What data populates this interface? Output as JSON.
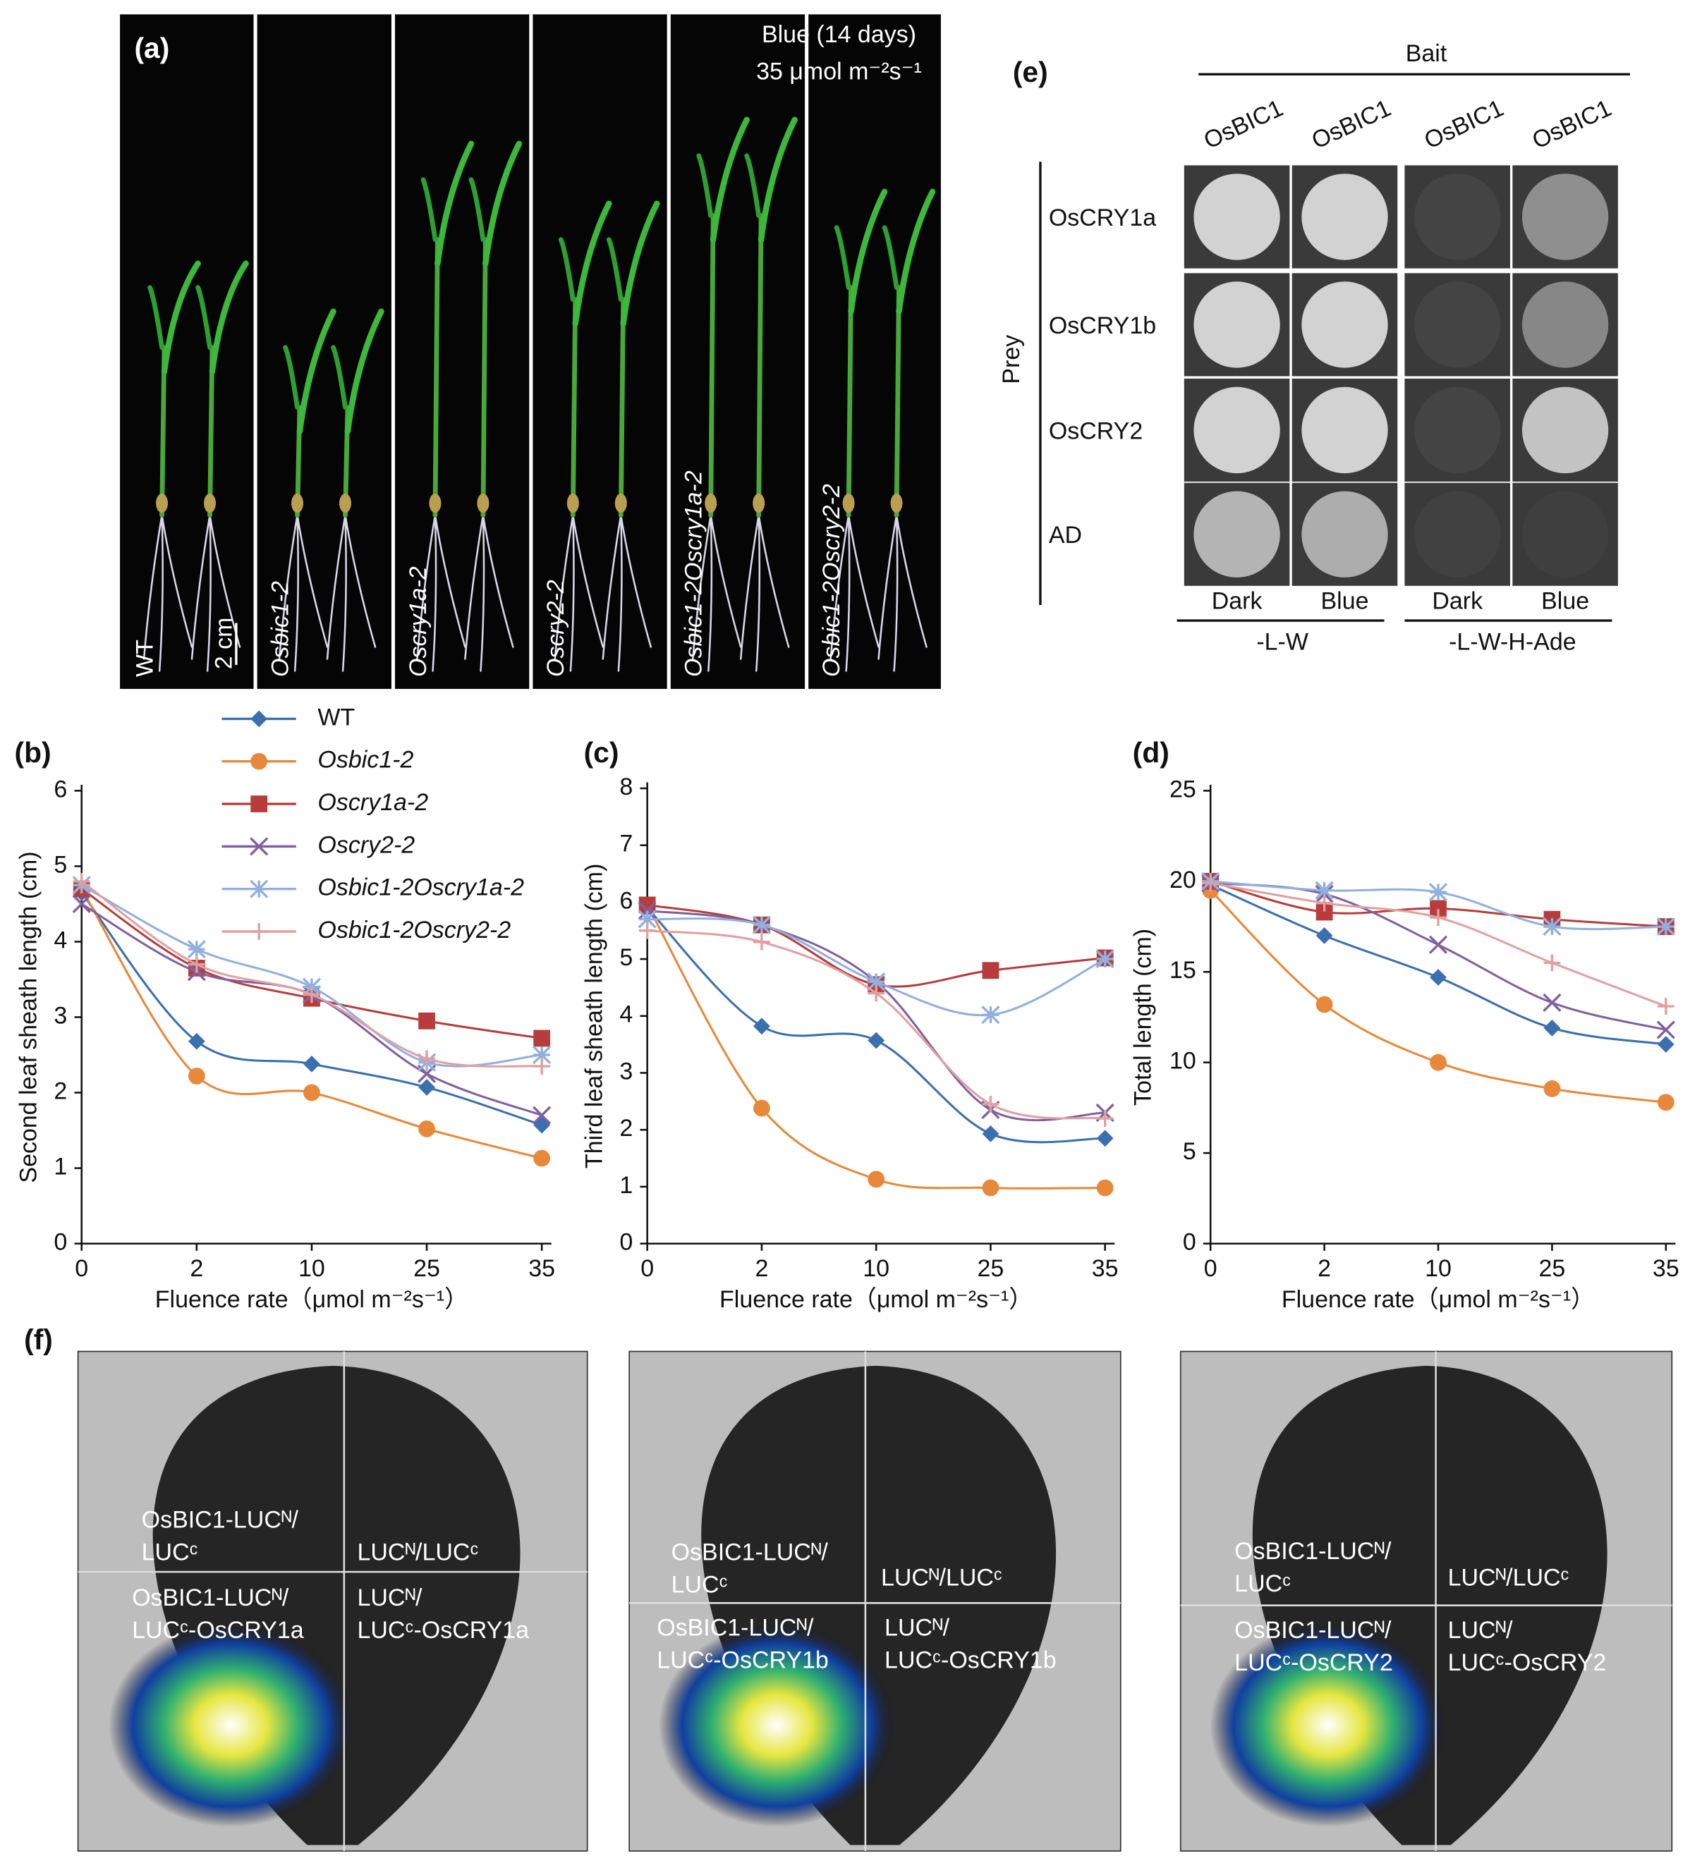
{
  "panel_a": {
    "label": "(a)",
    "condition": "Blue (14 days)",
    "fluence": "35 μmol m⁻²s⁻¹",
    "scale": "2 cm",
    "genotypes": [
      "WT",
      "Osbic1-2",
      "Oscry1a-2",
      "Oscry2-2",
      "Osbic1-2Oscry1a-2",
      "Osbic1-2Oscry2-2"
    ]
  },
  "panel_e": {
    "label": "(e)",
    "bait": "Bait",
    "prey": "Prey",
    "columns": [
      "OsBIC1",
      "OsBIC1",
      "OsBIC1",
      "OsBIC1"
    ],
    "rows": [
      "OsCRY1a",
      "OsCRY1b",
      "OsCRY2",
      "AD"
    ],
    "conditions": [
      "Dark",
      "Blue",
      "Dark",
      "Blue"
    ],
    "media": [
      "-L-W",
      "-L-W-H-Ade"
    ]
  },
  "panel_f": {
    "label": "(f)",
    "images": [
      {
        "quadrants": [
          [
            "OsBIC1-LUCᴺ/",
            "LUCᶜ"
          ],
          [
            "LUCᴺ/LUCᶜ"
          ],
          [
            "OsBIC1-LUCᴺ/",
            "LUCᶜ-OsCRY1a"
          ],
          [
            "LUCᴺ/",
            "LUCᶜ-OsCRY1a"
          ]
        ]
      },
      {
        "quadrants": [
          [
            "OsBIC1-LUCᴺ/",
            "LUCᶜ"
          ],
          [
            "LUCᴺ/LUCᶜ"
          ],
          [
            "OsBIC1-LUCᴺ/",
            "LUCᶜ-OsCRY1b"
          ],
          [
            "LUCᴺ/",
            "LUCᶜ-OsCRY1b"
          ]
        ]
      },
      {
        "quadrants": [
          [
            "OsBIC1-LUCᴺ/",
            "LUCᶜ"
          ],
          [
            "LUCᴺ/LUCᶜ"
          ],
          [
            "OsBIC1-LUCᴺ/",
            "LUCᶜ-OsCRY2"
          ],
          [
            "LUCᴺ/",
            "LUCᶜ-OsCRY2"
          ]
        ]
      }
    ]
  },
  "chart_data": [
    {
      "type": "line",
      "panel": "(b)",
      "ylabel": "Second leaf sheath length (cm)",
      "xlabel": "Fluence rate（μmol m⁻²s⁻¹）",
      "categories": [
        "0",
        "2",
        "10",
        "25",
        "35"
      ],
      "ylim": [
        0,
        6
      ],
      "yticks": [
        0,
        1,
        2,
        3,
        4,
        5,
        6
      ],
      "series": [
        {
          "name": "WT",
          "color": "#3a6fb0",
          "marker": "diamond",
          "values": [
            4.65,
            2.68,
            2.38,
            2.07,
            1.57
          ]
        },
        {
          "name": "Osbic1-2",
          "color": "#e8883a",
          "marker": "circle",
          "values": [
            4.7,
            2.22,
            2.0,
            1.52,
            1.13
          ]
        },
        {
          "name": "Oscry1a-2",
          "color": "#b83c3c",
          "marker": "square",
          "values": [
            4.7,
            3.65,
            3.25,
            2.95,
            2.72
          ]
        },
        {
          "name": "Oscry2-2",
          "color": "#8060a0",
          "marker": "x",
          "values": [
            4.5,
            3.6,
            3.3,
            2.25,
            1.7
          ]
        },
        {
          "name": "Osbic1-2Oscry1a-2",
          "color": "#90b0e0",
          "marker": "asterisk",
          "values": [
            4.75,
            3.9,
            3.4,
            2.4,
            2.5
          ]
        },
        {
          "name": "Osbic1-2Oscry2-2",
          "color": "#e0a0a0",
          "marker": "plus",
          "values": [
            4.8,
            3.7,
            3.3,
            2.45,
            2.35
          ]
        }
      ]
    },
    {
      "type": "line",
      "panel": "(c)",
      "ylabel": "Third leaf sheath length (cm)",
      "xlabel": "Fluence rate（μmol m⁻²s⁻¹）",
      "categories": [
        "0",
        "2",
        "10",
        "25",
        "35"
      ],
      "ylim": [
        0,
        8
      ],
      "yticks": [
        0,
        1,
        2,
        3,
        4,
        5,
        6,
        7,
        8
      ],
      "series": [
        {
          "color": "#3a6fb0",
          "marker": "diamond",
          "values": [
            5.9,
            3.82,
            3.57,
            1.93,
            1.85
          ]
        },
        {
          "color": "#e8883a",
          "marker": "circle",
          "values": [
            5.95,
            2.38,
            1.13,
            0.98,
            0.98
          ]
        },
        {
          "color": "#b83c3c",
          "marker": "square",
          "values": [
            5.95,
            5.6,
            4.55,
            4.8,
            5.02
          ]
        },
        {
          "color": "#8060a0",
          "marker": "x",
          "values": [
            5.85,
            5.6,
            4.6,
            2.35,
            2.3
          ]
        },
        {
          "color": "#90b0e0",
          "marker": "asterisk",
          "values": [
            5.7,
            5.6,
            4.6,
            4.02,
            5.0
          ]
        },
        {
          "color": "#e0a0a0",
          "marker": "plus",
          "values": [
            5.5,
            5.3,
            4.4,
            2.45,
            2.2
          ]
        }
      ]
    },
    {
      "type": "line",
      "panel": "(d)",
      "ylabel": "Total length (cm)",
      "xlabel": "Fluence rate（μmol m⁻²s⁻¹）",
      "categories": [
        "0",
        "2",
        "10",
        "25",
        "35"
      ],
      "ylim": [
        0,
        25
      ],
      "yticks": [
        0,
        5,
        10,
        15,
        20,
        25
      ],
      "series": [
        {
          "color": "#3a6fb0",
          "marker": "diamond",
          "values": [
            19.8,
            17.0,
            14.7,
            11.9,
            11.0
          ]
        },
        {
          "color": "#e8883a",
          "marker": "circle",
          "values": [
            19.5,
            13.2,
            10.0,
            8.55,
            7.8
          ]
        },
        {
          "color": "#b83c3c",
          "marker": "square",
          "values": [
            20.0,
            18.3,
            18.5,
            17.9,
            17.5
          ]
        },
        {
          "color": "#8060a0",
          "marker": "x",
          "values": [
            19.9,
            19.3,
            16.5,
            13.3,
            11.8
          ]
        },
        {
          "color": "#90b0e0",
          "marker": "asterisk",
          "values": [
            20.0,
            19.5,
            19.4,
            17.5,
            17.5
          ]
        },
        {
          "color": "#e0a0a0",
          "marker": "plus",
          "values": [
            19.9,
            18.8,
            18.0,
            15.5,
            13.1
          ]
        }
      ]
    }
  ]
}
